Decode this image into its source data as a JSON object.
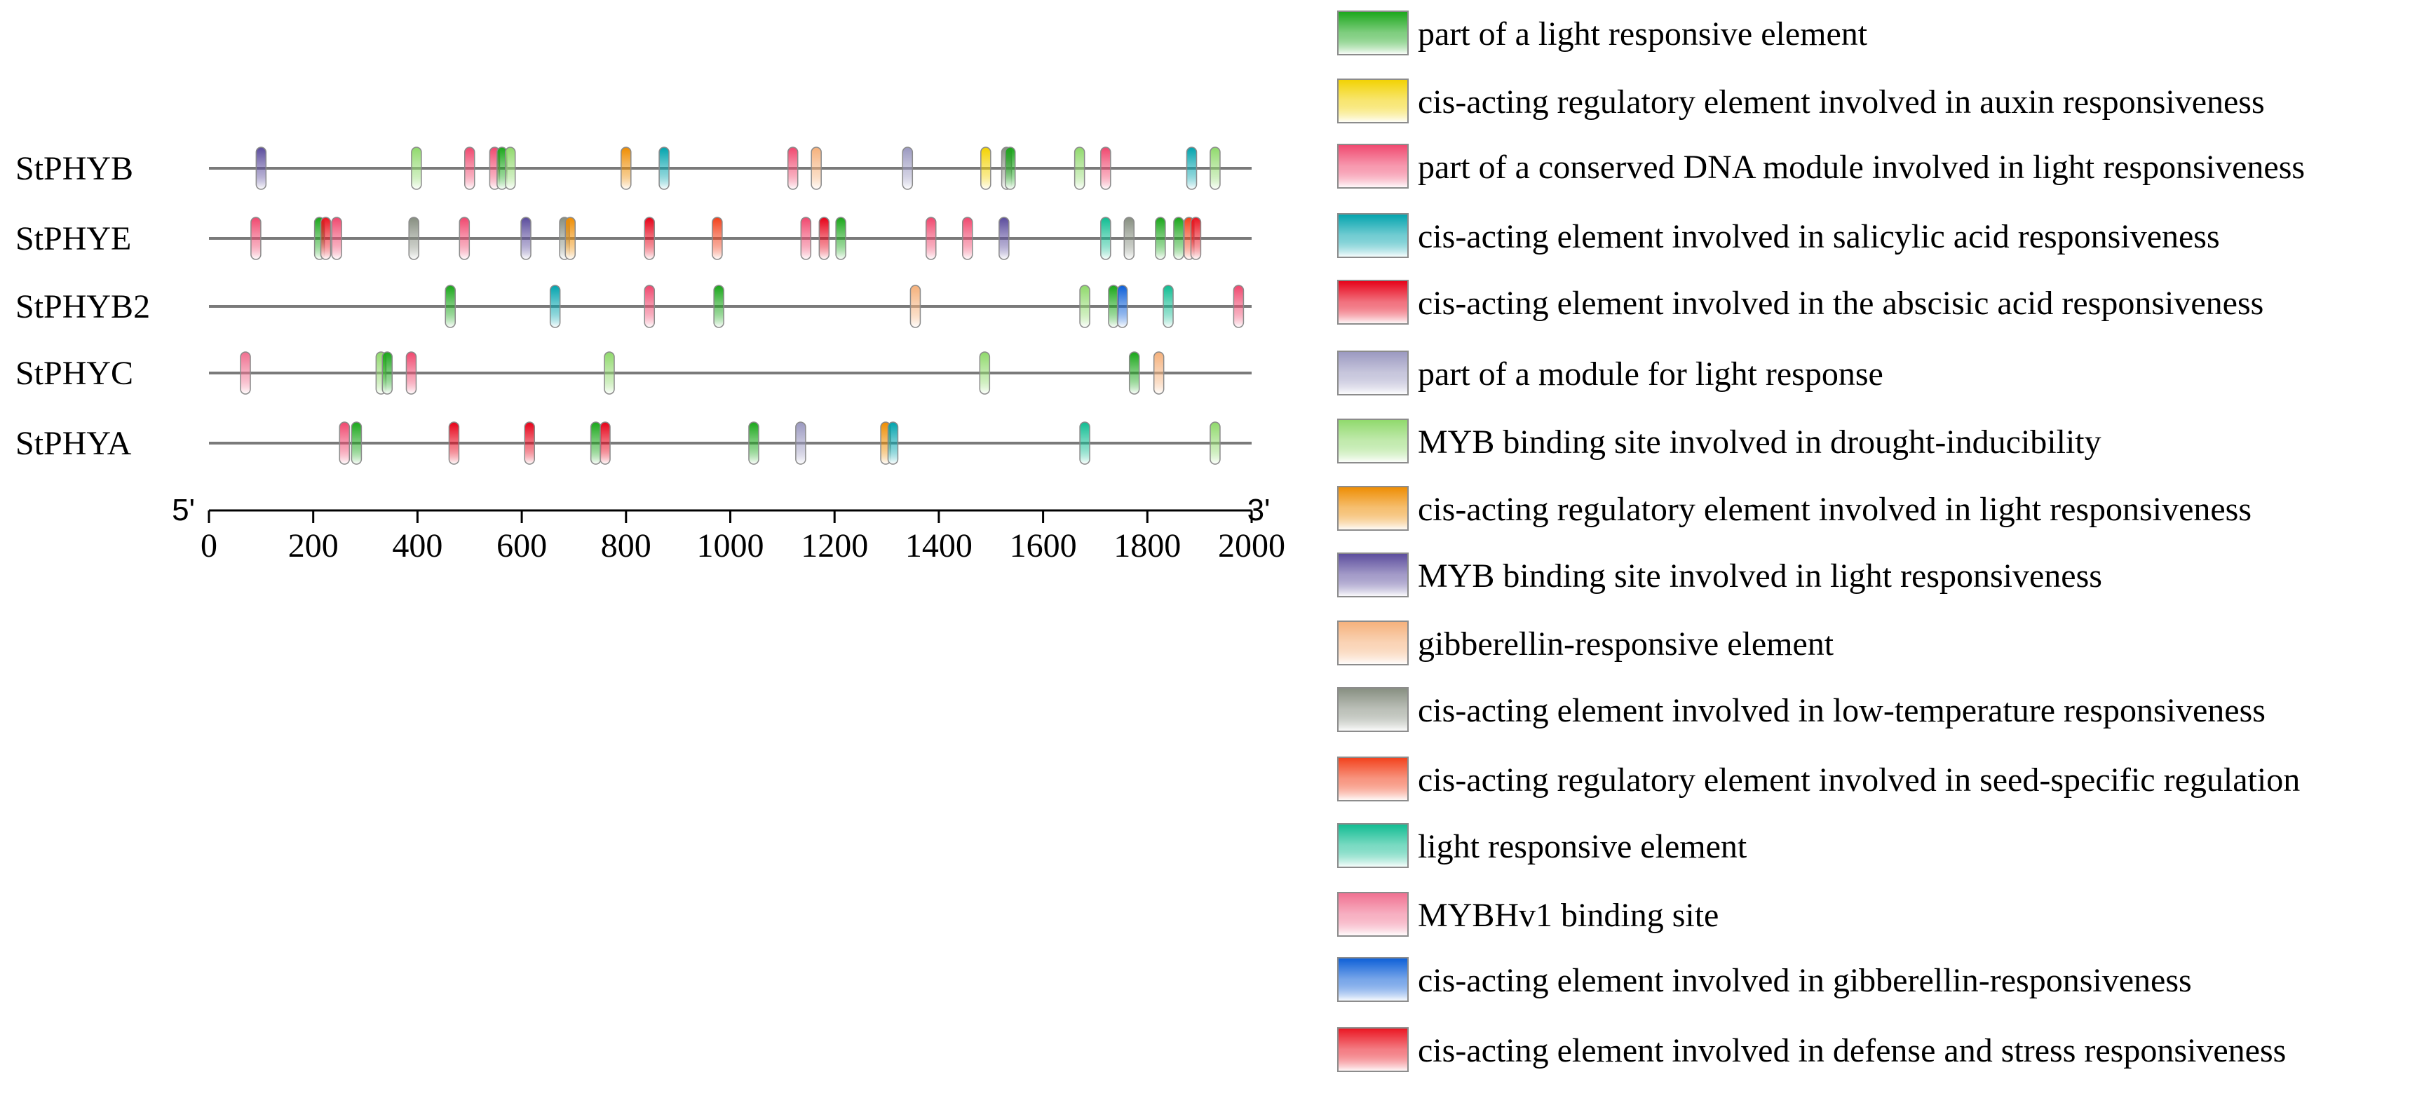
{
  "chart_data": {
    "type": "motif-map",
    "x_axis": {
      "min": 0,
      "max": 2000,
      "ticks": [
        0,
        200,
        400,
        600,
        800,
        1000,
        1200,
        1400,
        1600,
        1800,
        2000
      ],
      "start_label": "5'",
      "end_label": "3'"
    },
    "motif_types": [
      {
        "id": "light_part",
        "label": "part of a light responsive element",
        "color": "#19a619"
      },
      {
        "id": "auxin",
        "label": "cis-acting regulatory element involved in auxin responsiveness",
        "color": "#f2d200"
      },
      {
        "id": "conserved_dna",
        "label": "part of a conserved DNA module involved in light responsiveness",
        "color": "#f0476e"
      },
      {
        "id": "salicylic",
        "label": "cis-acting element involved in salicylic acid responsiveness",
        "color": "#00a3ad"
      },
      {
        "id": "abscisic",
        "label": "cis-acting element involved in the abscisic acid responsiveness",
        "color": "#e60017"
      },
      {
        "id": "module_light",
        "label": "part of a module for light response",
        "color": "#9a98c0"
      },
      {
        "id": "myb_drought",
        "label": "MYB binding site involved in drought-inducibility",
        "color": "#8fd96b"
      },
      {
        "id": "light_reg",
        "label": "cis-acting regulatory element involved in light responsiveness",
        "color": "#ee8c00"
      },
      {
        "id": "myb_light",
        "label": "MYB binding site involved in light responsiveness",
        "color": "#5a4b9c"
      },
      {
        "id": "gibberellin",
        "label": "gibberellin-responsive element",
        "color": "#f5b07a"
      },
      {
        "id": "low_temp",
        "label": "cis-acting element involved in low-temperature responsiveness",
        "color": "#868e80"
      },
      {
        "id": "seed",
        "label": "cis-acting regulatory element involved in seed-specific regulation",
        "color": "#f2401a"
      },
      {
        "id": "light_resp",
        "label": "light responsive element",
        "color": "#0fbc91"
      },
      {
        "id": "mybhv1",
        "label": "MYBHv1 binding site",
        "color": "#f06f8f"
      },
      {
        "id": "gib_resp",
        "label": "cis-acting element involved in gibberellin-responsiveness",
        "color": "#0b5ed7"
      },
      {
        "id": "defense",
        "label": "cis-acting element involved in defense and stress responsiveness",
        "color": "#ea1420"
      }
    ],
    "genes": [
      {
        "name": "StPHYB",
        "length": 2000,
        "motifs": [
          {
            "pos": 100,
            "type": "myb_light"
          },
          {
            "pos": 398,
            "type": "myb_drought"
          },
          {
            "pos": 500,
            "type": "conserved_dna"
          },
          {
            "pos": 548,
            "type": "conserved_dna"
          },
          {
            "pos": 562,
            "type": "light_part"
          },
          {
            "pos": 578,
            "type": "myb_drought"
          },
          {
            "pos": 800,
            "type": "light_reg"
          },
          {
            "pos": 873,
            "type": "salicylic"
          },
          {
            "pos": 1120,
            "type": "conserved_dna"
          },
          {
            "pos": 1165,
            "type": "gibberellin"
          },
          {
            "pos": 1340,
            "type": "module_light"
          },
          {
            "pos": 1490,
            "type": "auxin"
          },
          {
            "pos": 1530,
            "type": "low_temp"
          },
          {
            "pos": 1537,
            "type": "light_part"
          },
          {
            "pos": 1670,
            "type": "myb_drought"
          },
          {
            "pos": 1720,
            "type": "conserved_dna"
          },
          {
            "pos": 1885,
            "type": "salicylic"
          },
          {
            "pos": 1930,
            "type": "myb_drought"
          }
        ]
      },
      {
        "name": "StPHYE",
        "length": 2000,
        "motifs": [
          {
            "pos": 90,
            "type": "conserved_dna"
          },
          {
            "pos": 212,
            "type": "light_part"
          },
          {
            "pos": 224,
            "type": "defense"
          },
          {
            "pos": 245,
            "type": "conserved_dna"
          },
          {
            "pos": 393,
            "type": "low_temp"
          },
          {
            "pos": 490,
            "type": "conserved_dna"
          },
          {
            "pos": 608,
            "type": "myb_light"
          },
          {
            "pos": 682,
            "type": "low_temp"
          },
          {
            "pos": 693,
            "type": "light_reg"
          },
          {
            "pos": 845,
            "type": "abscisic"
          },
          {
            "pos": 975,
            "type": "seed"
          },
          {
            "pos": 1145,
            "type": "conserved_dna"
          },
          {
            "pos": 1180,
            "type": "abscisic"
          },
          {
            "pos": 1212,
            "type": "light_part"
          },
          {
            "pos": 1385,
            "type": "conserved_dna"
          },
          {
            "pos": 1455,
            "type": "conserved_dna"
          },
          {
            "pos": 1525,
            "type": "myb_light"
          },
          {
            "pos": 1720,
            "type": "light_resp"
          },
          {
            "pos": 1765,
            "type": "low_temp"
          },
          {
            "pos": 1825,
            "type": "light_part"
          },
          {
            "pos": 1860,
            "type": "light_part"
          },
          {
            "pos": 1880,
            "type": "seed"
          },
          {
            "pos": 1893,
            "type": "defense"
          }
        ]
      },
      {
        "name": "StPHYB2",
        "length": 2000,
        "motifs": [
          {
            "pos": 463,
            "type": "light_part"
          },
          {
            "pos": 664,
            "type": "salicylic"
          },
          {
            "pos": 845,
            "type": "conserved_dna"
          },
          {
            "pos": 978,
            "type": "light_part"
          },
          {
            "pos": 1355,
            "type": "gibberellin"
          },
          {
            "pos": 1680,
            "type": "myb_drought"
          },
          {
            "pos": 1735,
            "type": "light_part"
          },
          {
            "pos": 1752,
            "type": "gib_resp"
          },
          {
            "pos": 1840,
            "type": "light_resp"
          },
          {
            "pos": 1975,
            "type": "conserved_dna"
          }
        ]
      },
      {
        "name": "StPHYC",
        "length": 2000,
        "motifs": [
          {
            "pos": 70,
            "type": "mybhv1"
          },
          {
            "pos": 330,
            "type": "myb_drought"
          },
          {
            "pos": 342,
            "type": "light_part"
          },
          {
            "pos": 388,
            "type": "conserved_dna"
          },
          {
            "pos": 768,
            "type": "myb_drought"
          },
          {
            "pos": 1488,
            "type": "myb_drought"
          },
          {
            "pos": 1775,
            "type": "light_part"
          },
          {
            "pos": 1822,
            "type": "gibberellin"
          }
        ]
      },
      {
        "name": "StPHYA",
        "length": 2000,
        "motifs": [
          {
            "pos": 260,
            "type": "conserved_dna"
          },
          {
            "pos": 283,
            "type": "light_part"
          },
          {
            "pos": 470,
            "type": "abscisic"
          },
          {
            "pos": 615,
            "type": "abscisic"
          },
          {
            "pos": 742,
            "type": "light_part"
          },
          {
            "pos": 760,
            "type": "abscisic"
          },
          {
            "pos": 1045,
            "type": "light_part"
          },
          {
            "pos": 1135,
            "type": "module_light"
          },
          {
            "pos": 1298,
            "type": "light_reg"
          },
          {
            "pos": 1312,
            "type": "salicylic"
          },
          {
            "pos": 1680,
            "type": "light_resp"
          },
          {
            "pos": 1930,
            "type": "myb_drought"
          }
        ]
      }
    ]
  }
}
